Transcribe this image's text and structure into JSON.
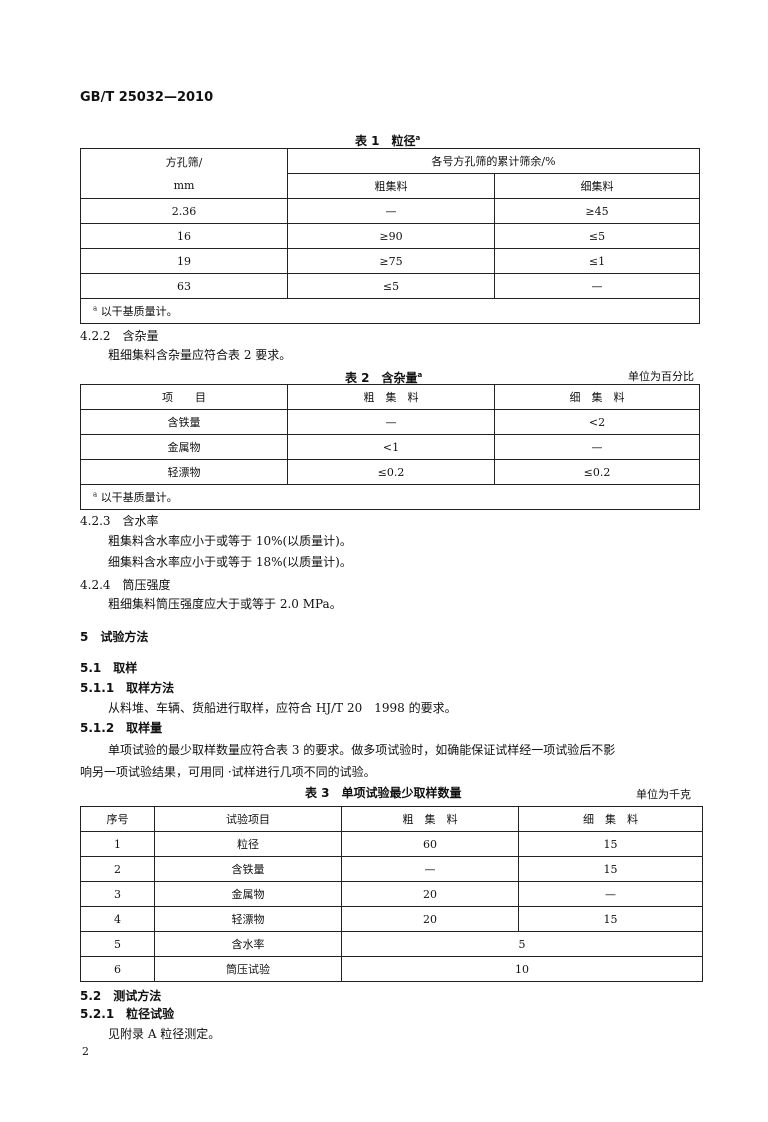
{
  "header": "GB/T 25032—2010",
  "table1": {
    "title": "表 1　粒径",
    "title_mark": "a",
    "col0": "方孔筛/",
    "col0_unit": "mm",
    "group": "各号方孔筛的累计筛余/%",
    "col1": "粗集料",
    "col2": "细集料",
    "rows": [
      [
        "2.36",
        "—",
        "≥45"
      ],
      [
        "16",
        "≥90",
        "≤5"
      ],
      [
        "19",
        "≥75",
        "≤1"
      ],
      [
        "63",
        "≤5",
        "—"
      ]
    ],
    "footnote_mark": "a",
    "footnote": "以干基质量计。"
  },
  "s422": {
    "heading": "4.2.2　含杂量",
    "body": "粗细集料含杂量应符合表 2 要求。"
  },
  "table2": {
    "title": "表 2　含杂量",
    "title_mark": "a",
    "unit": "单位为百分比",
    "headers": [
      "项　　目",
      "粗　集　料",
      "细　集　料"
    ],
    "rows": [
      [
        "含铁量",
        "—",
        "<2"
      ],
      [
        "金属物",
        "<1",
        "—"
      ],
      [
        "轻漂物",
        "≤0.2",
        "≤0.2"
      ]
    ],
    "footnote_mark": "a",
    "footnote": "以干基质量计。"
  },
  "s423": {
    "heading": "4.2.3　含水率",
    "line1": "粗集料含水率应小于或等于 10%(以质量计)。",
    "line2": "细集料含水率应小于或等于 18%(以质量计)。"
  },
  "s424": {
    "heading": "4.2.4　筒压强度",
    "body": "粗细集料筒压强度应大于或等于 2.0 MPa。"
  },
  "s5": {
    "heading": "5　试验方法"
  },
  "s51": {
    "heading": "5.1　取样"
  },
  "s511": {
    "heading": "5.1.1　取样方法",
    "body": "从料堆、车辆、货船进行取样，应符合 HJ/T 20　1998 的要求。"
  },
  "s512": {
    "heading": "5.1.2　取样量",
    "line1": "单项试验的最少取样数量应符合表 3 的要求。做多项试验时，如确能保证试样经一项试验后不影",
    "line2": "响另一项试验结果，可用同 ·试样进行几项不同的试验。"
  },
  "table3": {
    "title": "表 3　单项试验最少取样数量",
    "unit": "单位为千克",
    "headers": [
      "序号",
      "试验项目",
      "粗　集　料",
      "细　集　料"
    ],
    "rows": [
      [
        "1",
        "粒径",
        "60",
        "15"
      ],
      [
        "2",
        "含铁量",
        "—",
        "15"
      ],
      [
        "3",
        "金属物",
        "20",
        "—"
      ],
      [
        "4",
        "轻漂物",
        "20",
        "15"
      ]
    ],
    "merged_rows": [
      [
        "5",
        "含水率",
        "5"
      ],
      [
        "6",
        "筒压试验",
        "10"
      ]
    ]
  },
  "s52": {
    "heading": "5.2　测试方法"
  },
  "s521": {
    "heading": "5.2.1　粒径试验",
    "body": "见附录 A 粒径测定。"
  },
  "page_number": "2"
}
